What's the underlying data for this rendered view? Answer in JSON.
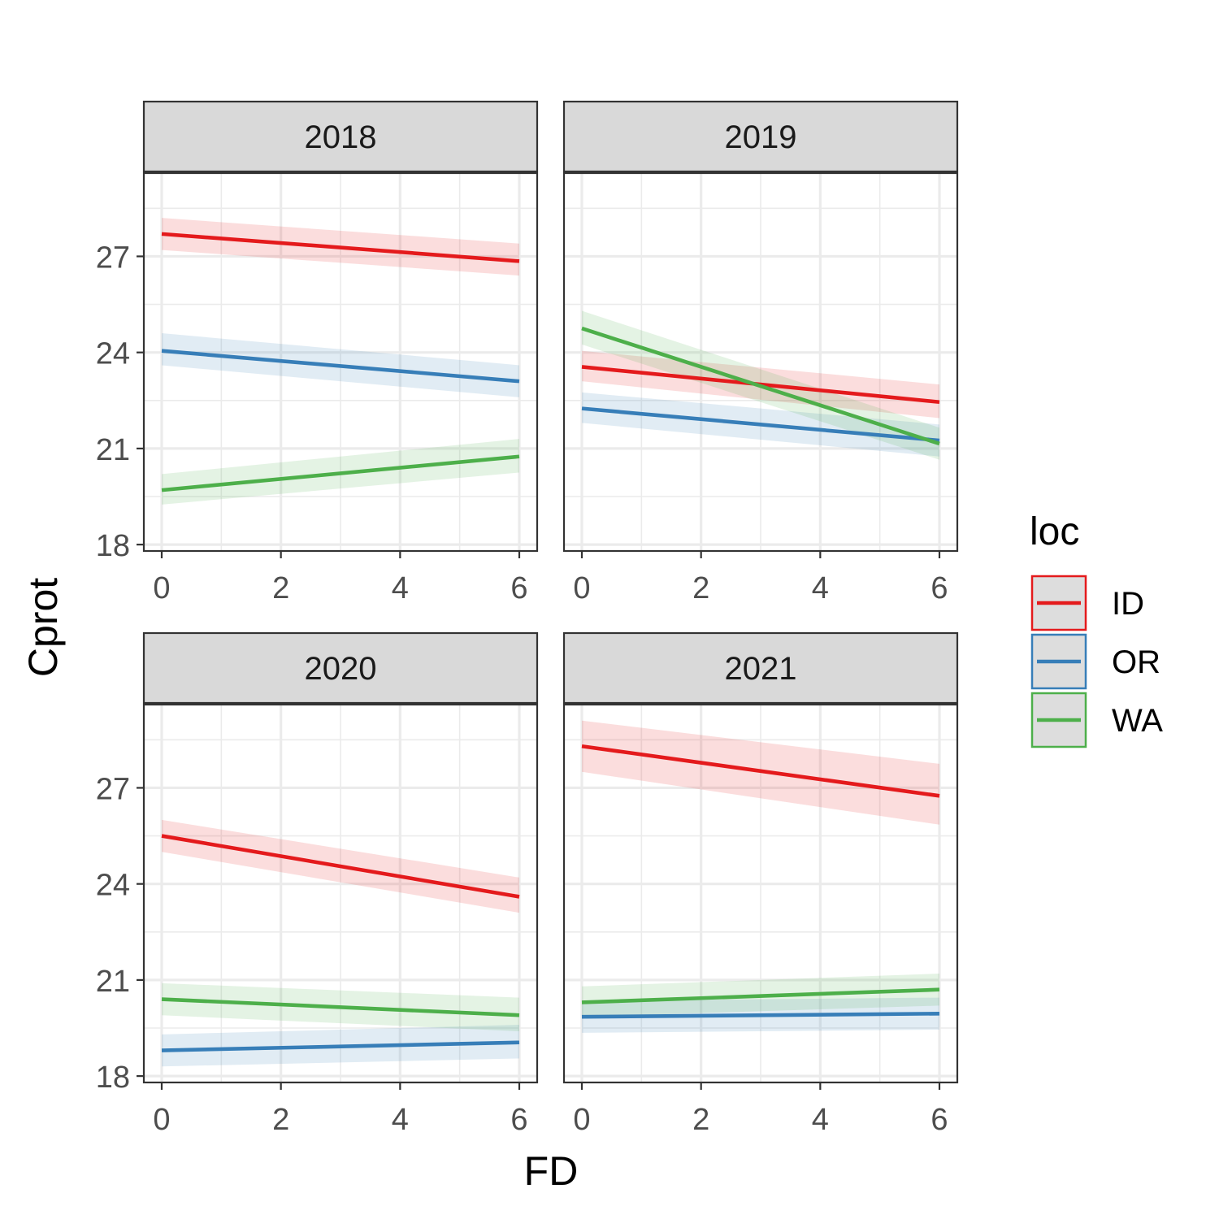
{
  "chart_data": {
    "type": "line",
    "xlabel": "FD",
    "ylabel": "Cprot",
    "xlim": [
      -0.3,
      6.3
    ],
    "ylim": [
      17.8,
      29.6
    ],
    "xticks": [
      0,
      2,
      4,
      6
    ],
    "yticks": [
      18,
      21,
      24,
      27
    ],
    "grid": true,
    "legend": {
      "title": "loc",
      "placement": "right",
      "entries": [
        {
          "key": "ID",
          "label": "ID",
          "color": "#e41a1c"
        },
        {
          "key": "OR",
          "label": "OR",
          "color": "#377eb8"
        },
        {
          "key": "WA",
          "label": "WA",
          "color": "#4daf4a"
        }
      ]
    },
    "panels": [
      {
        "label": "2018",
        "series": [
          {
            "name": "ID",
            "x": [
              0,
              6
            ],
            "y": [
              27.7,
              26.85
            ],
            "lower": [
              27.2,
              26.4
            ],
            "upper": [
              28.2,
              27.4
            ]
          },
          {
            "name": "OR",
            "x": [
              0,
              6
            ],
            "y": [
              24.05,
              23.1
            ],
            "lower": [
              23.6,
              22.6
            ],
            "upper": [
              24.6,
              23.6
            ]
          },
          {
            "name": "WA",
            "x": [
              0,
              6
            ],
            "y": [
              19.7,
              20.75
            ],
            "lower": [
              19.25,
              20.25
            ],
            "upper": [
              20.2,
              21.3
            ]
          }
        ]
      },
      {
        "label": "2019",
        "series": [
          {
            "name": "ID",
            "x": [
              0,
              6
            ],
            "y": [
              23.55,
              22.45
            ],
            "lower": [
              23.1,
              21.95
            ],
            "upper": [
              24.05,
              23.0
            ]
          },
          {
            "name": "OR",
            "x": [
              0,
              6
            ],
            "y": [
              22.25,
              21.25
            ],
            "lower": [
              21.8,
              20.75
            ],
            "upper": [
              22.75,
              21.75
            ]
          },
          {
            "name": "WA",
            "x": [
              0,
              6
            ],
            "y": [
              24.75,
              21.15
            ],
            "lower": [
              24.25,
              20.65
            ],
            "upper": [
              25.3,
              21.65
            ]
          }
        ]
      },
      {
        "label": "2020",
        "series": [
          {
            "name": "ID",
            "x": [
              0,
              6
            ],
            "y": [
              25.5,
              23.6
            ],
            "lower": [
              25.0,
              23.1
            ],
            "upper": [
              26.0,
              24.2
            ]
          },
          {
            "name": "OR",
            "x": [
              0,
              6
            ],
            "y": [
              18.8,
              19.05
            ],
            "lower": [
              18.3,
              18.55
            ],
            "upper": [
              19.3,
              19.6
            ]
          },
          {
            "name": "WA",
            "x": [
              0,
              6
            ],
            "y": [
              20.4,
              19.9
            ],
            "lower": [
              19.9,
              19.4
            ],
            "upper": [
              20.9,
              20.45
            ]
          }
        ]
      },
      {
        "label": "2021",
        "series": [
          {
            "name": "ID",
            "x": [
              0,
              6
            ],
            "y": [
              28.3,
              26.75
            ],
            "lower": [
              27.5,
              25.85
            ],
            "upper": [
              29.1,
              27.75
            ]
          },
          {
            "name": "OR",
            "x": [
              0,
              6
            ],
            "y": [
              19.85,
              19.95
            ],
            "lower": [
              19.35,
              19.45
            ],
            "upper": [
              20.35,
              20.45
            ]
          },
          {
            "name": "WA",
            "x": [
              0,
              6
            ],
            "y": [
              20.3,
              20.7
            ],
            "lower": [
              19.85,
              20.2
            ],
            "upper": [
              20.8,
              21.2
            ]
          }
        ]
      }
    ]
  }
}
